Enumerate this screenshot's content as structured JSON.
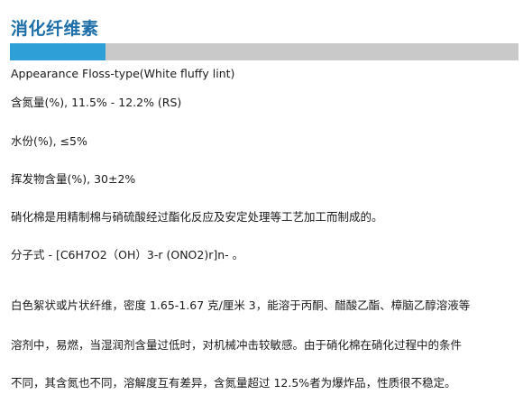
{
  "title": "消化纤维素",
  "colors": {
    "title": "#1e6fa8",
    "accent_bar": "#2f9fd8",
    "bar_background": "#c9c9c9",
    "text": "#1a1a1a"
  },
  "lines": [
    "Appearance Floss-type(White fluffy lint)",
    "含氮量(%), 11.5% - 12.2% (RS)",
    "水份(%), ≤5%",
    "挥发物含量(%), 30±2%",
    "硝化棉是用精制棉与硝硫酸经过酯化反应及安定处理等工艺加工而制成的。",
    "分子式 - [C6H7O2（OH）3-r (ONO2)r]n- 。",
    "白色絮状或片状纤维，密度 1.65-1.67 克/厘米 3，能溶于丙酮、醋酸乙酯、樟脑乙醇溶液等",
    "溶剂中，易燃，当湿润剂含量过低时，对机械冲击较敏感。由于硝化棉在硝化过程中的条件",
    "不同，其含氮也不同，溶解度互有差异，含氮量超过 12.5%者为爆炸品，性质很不稳定。"
  ]
}
